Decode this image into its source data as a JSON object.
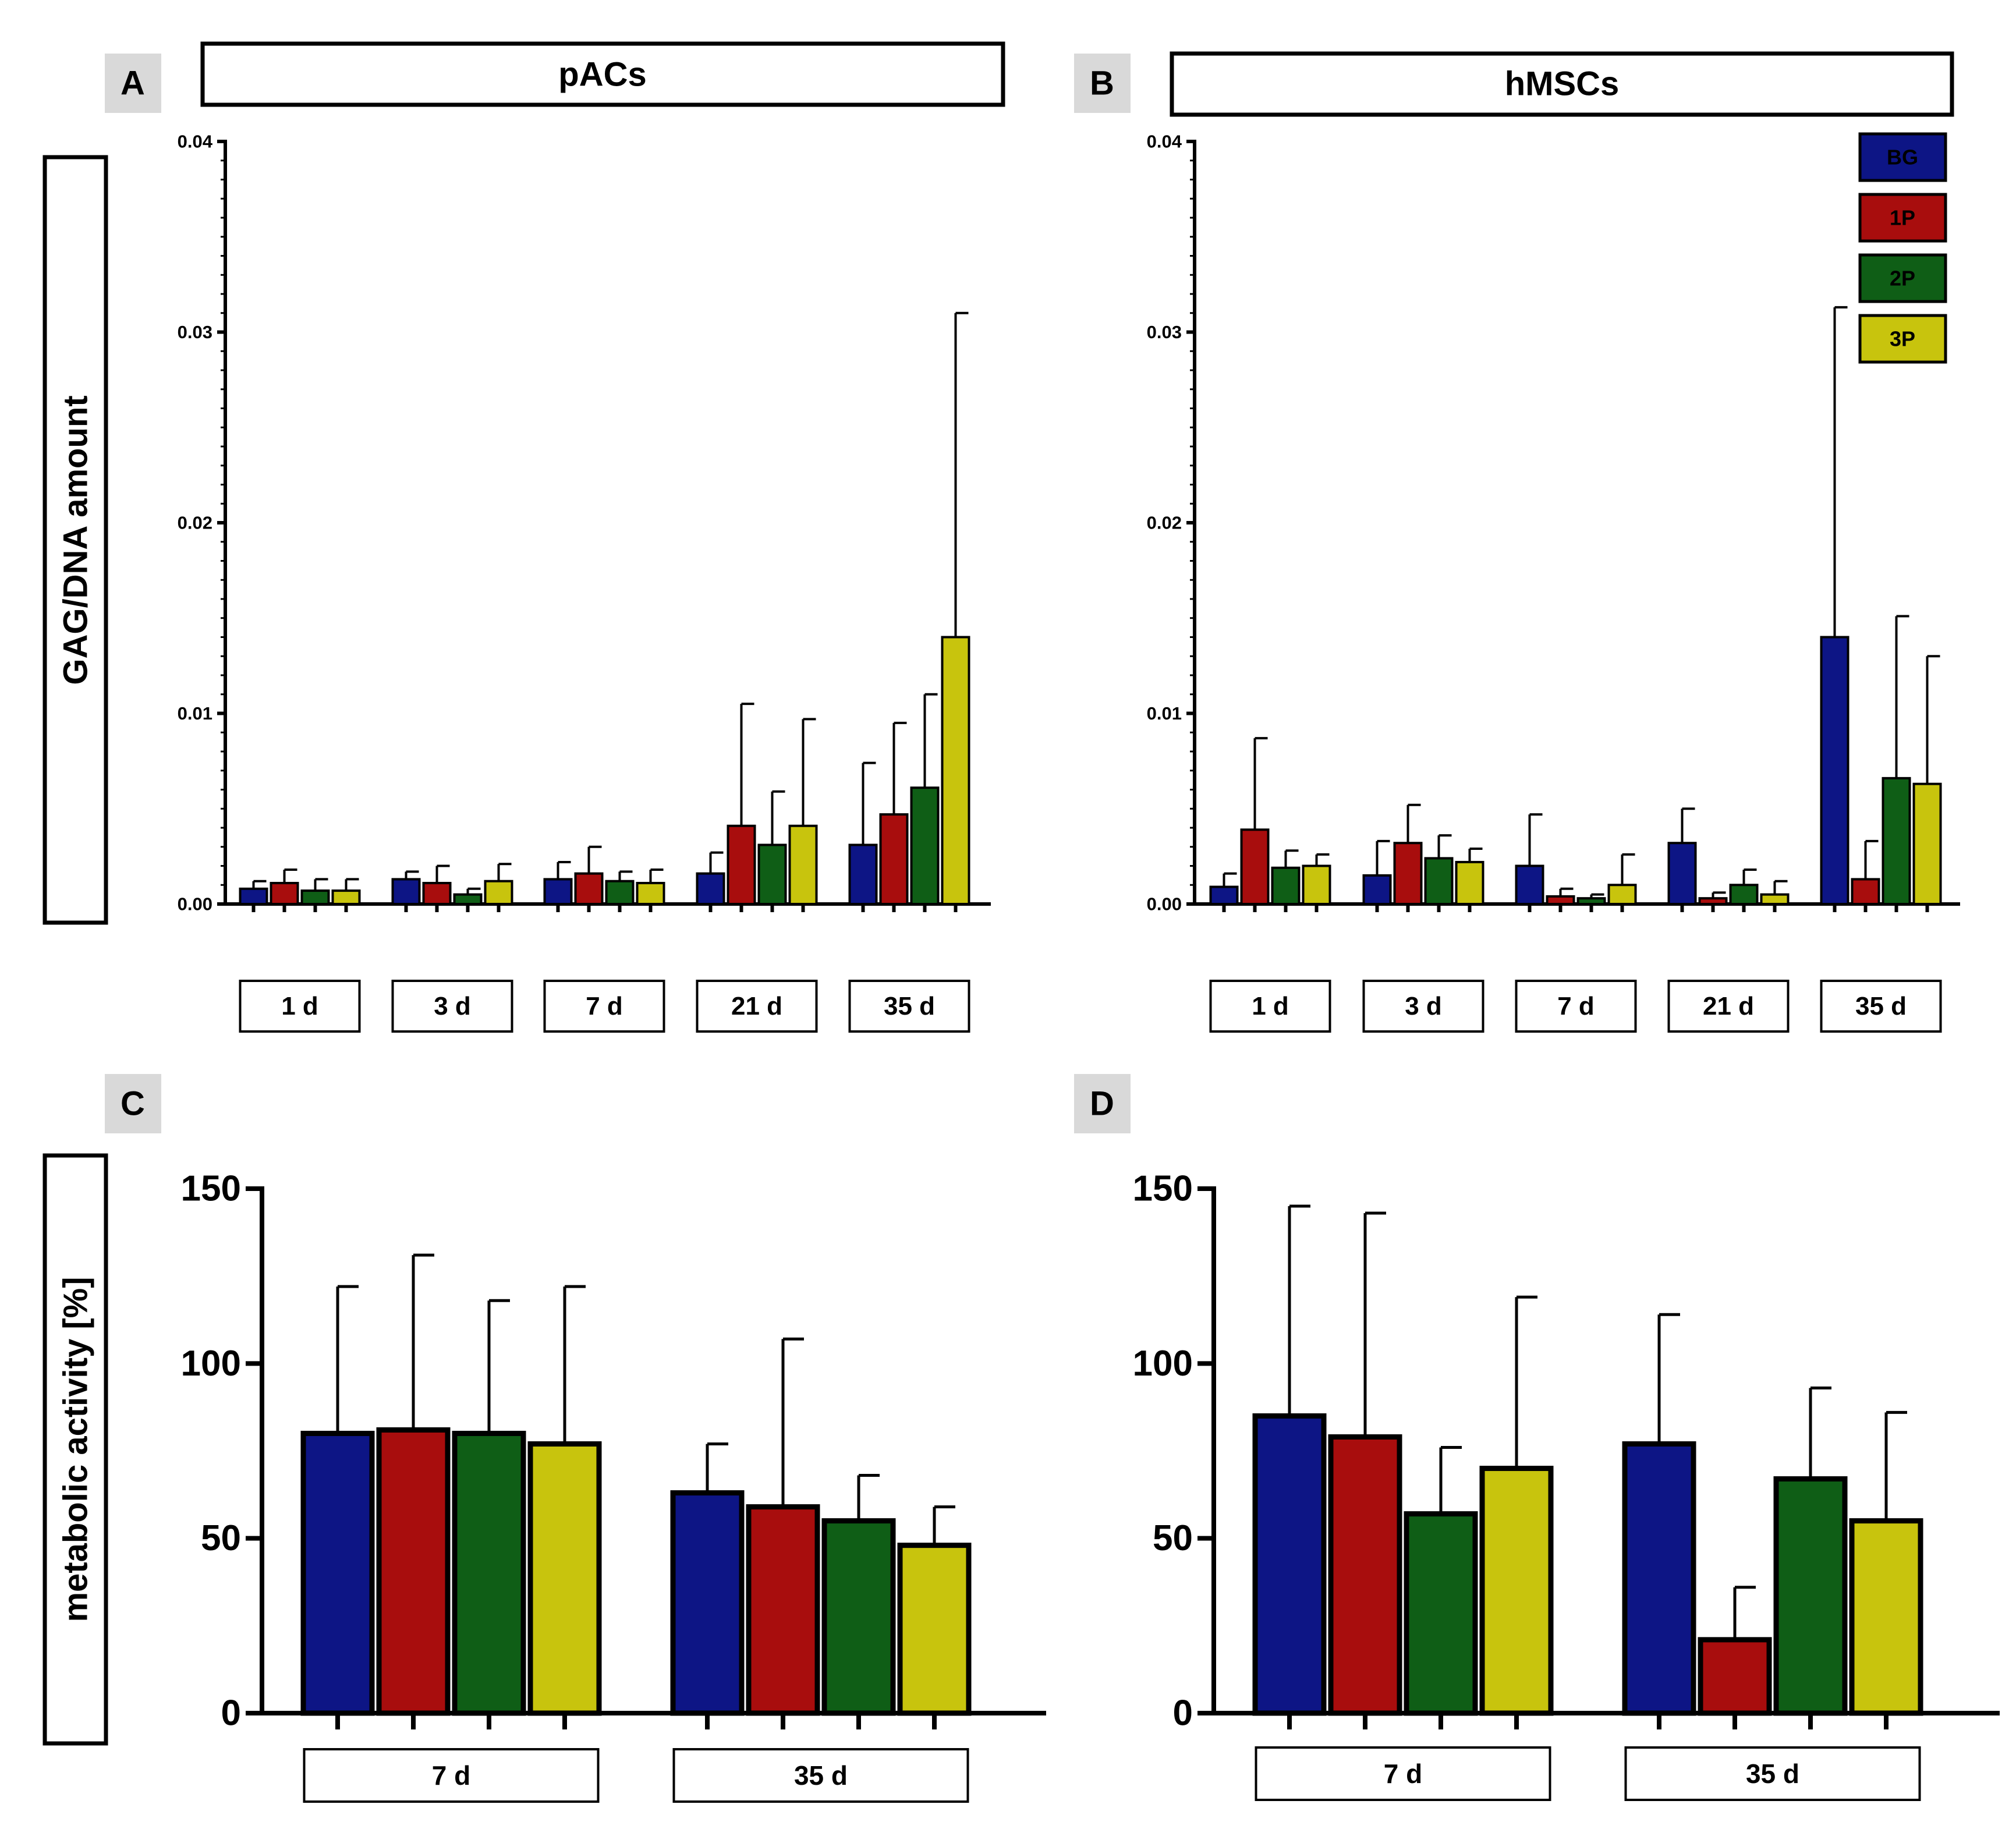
{
  "figure": {
    "panel_letters": [
      "A",
      "B",
      "C",
      "D"
    ],
    "ylabel_top": "GAG/DNA amount",
    "ylabel_bottom": "metabolic activity [%]",
    "colors": {
      "BG": "#0d1585",
      "1P": "#a80d0d",
      "2P": "#0f5e16",
      "3P": "#c8c40d"
    }
  },
  "legend": {
    "entries": [
      {
        "label": "BG",
        "color": "#0d1585"
      },
      {
        "label": "1P",
        "color": "#a80d0d"
      },
      {
        "label": "2P",
        "color": "#0f5e16"
      },
      {
        "label": "3P",
        "color": "#c8c40d"
      }
    ]
  },
  "chart_data": [
    {
      "panel": "A",
      "type": "bar",
      "title": "pACs",
      "ylabel": "GAG/DNA amount",
      "ylim": [
        0,
        0.04
      ],
      "yticks": [
        "0.00",
        "0.01",
        "0.02",
        "0.03",
        "0.04"
      ],
      "categories": [
        "1 d",
        "3 d",
        "7 d",
        "21 d",
        "35 d"
      ],
      "series": [
        {
          "name": "BG",
          "values": [
            0.0008,
            0.0013,
            0.0013,
            0.0016,
            0.0031
          ],
          "errors": [
            0.0004,
            0.0004,
            0.0009,
            0.0011,
            0.0043
          ]
        },
        {
          "name": "1P",
          "values": [
            0.0011,
            0.0011,
            0.0016,
            0.0041,
            0.0047
          ],
          "errors": [
            0.0007,
            0.0009,
            0.0014,
            0.0064,
            0.0048
          ]
        },
        {
          "name": "2P",
          "values": [
            0.0007,
            0.0005,
            0.0012,
            0.0031,
            0.0061
          ],
          "errors": [
            0.0006,
            0.0003,
            0.0005,
            0.0028,
            0.0049
          ]
        },
        {
          "name": "3P",
          "values": [
            0.0007,
            0.0012,
            0.0011,
            0.0041,
            0.014
          ],
          "errors": [
            0.0006,
            0.0009,
            0.0007,
            0.0056,
            0.017
          ]
        }
      ]
    },
    {
      "panel": "B",
      "type": "bar",
      "title": "hMSCs",
      "ylabel": "GAG/DNA amount",
      "ylim": [
        0,
        0.04
      ],
      "yticks": [
        "0.00",
        "0.01",
        "0.02",
        "0.03",
        "0.04"
      ],
      "categories": [
        "1 d",
        "3 d",
        "7 d",
        "21 d",
        "35 d"
      ],
      "series": [
        {
          "name": "BG",
          "values": [
            0.0009,
            0.0015,
            0.002,
            0.0032,
            0.014
          ],
          "errors": [
            0.0007,
            0.0018,
            0.0027,
            0.0018,
            0.0173
          ]
        },
        {
          "name": "1P",
          "values": [
            0.0039,
            0.0032,
            0.0004,
            0.0003,
            0.0013
          ],
          "errors": [
            0.0048,
            0.002,
            0.0004,
            0.0003,
            0.002
          ]
        },
        {
          "name": "2P",
          "values": [
            0.0019,
            0.0024,
            0.0003,
            0.001,
            0.0066
          ],
          "errors": [
            0.0009,
            0.0012,
            0.0002,
            0.0008,
            0.0085
          ]
        },
        {
          "name": "3P",
          "values": [
            0.002,
            0.0022,
            0.001,
            0.0005,
            0.0063
          ],
          "errors": [
            0.0006,
            0.0007,
            0.0016,
            0.0007,
            0.0067
          ]
        }
      ]
    },
    {
      "panel": "C",
      "type": "bar",
      "title": "",
      "ylabel": "metabolic activity [%]",
      "ylim": [
        0,
        150
      ],
      "yticks": [
        "0",
        "50",
        "100",
        "150"
      ],
      "categories": [
        "7 d",
        "35 d"
      ],
      "series": [
        {
          "name": "BG",
          "values": [
            80,
            63
          ],
          "errors": [
            42,
            14
          ]
        },
        {
          "name": "1P",
          "values": [
            81,
            59
          ],
          "errors": [
            50,
            48
          ]
        },
        {
          "name": "2P",
          "values": [
            80,
            55
          ],
          "errors": [
            38,
            13
          ]
        },
        {
          "name": "3P",
          "values": [
            77,
            48
          ],
          "errors": [
            45,
            11
          ]
        }
      ]
    },
    {
      "panel": "D",
      "type": "bar",
      "title": "",
      "ylabel": "metabolic activity [%]",
      "ylim": [
        0,
        150
      ],
      "yticks": [
        "0",
        "50",
        "100",
        "150"
      ],
      "categories": [
        "7 d",
        "35 d"
      ],
      "series": [
        {
          "name": "BG",
          "values": [
            85,
            77
          ],
          "errors": [
            60,
            37
          ]
        },
        {
          "name": "1P",
          "values": [
            79,
            21
          ],
          "errors": [
            64,
            15
          ]
        },
        {
          "name": "2P",
          "values": [
            57,
            67
          ],
          "errors": [
            19,
            26
          ]
        },
        {
          "name": "3P",
          "values": [
            70,
            55
          ],
          "errors": [
            49,
            31
          ]
        }
      ]
    }
  ]
}
